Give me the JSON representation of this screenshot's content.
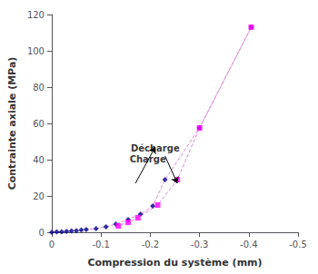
{
  "chart_data": {
    "type": "line",
    "x_label": "Compression du système (mm)",
    "y_label": "Contrainte axiale (MPa)",
    "xlim": [
      0,
      -0.5
    ],
    "ylim": [
      0,
      120
    ],
    "xticks": [
      0,
      -0.1,
      -0.2,
      -0.3,
      -0.4,
      -0.5
    ],
    "yticks": [
      0,
      20,
      40,
      60,
      80,
      100,
      120
    ],
    "grid": false,
    "series": [
      {
        "type": "line",
        "color": "#DD88DD",
        "line_style": "dashed",
        "marker": "none",
        "x": [
          0,
          -0.01,
          -0.02,
          -0.03,
          -0.04,
          -0.05,
          -0.06,
          -0.07,
          -0.09,
          -0.11,
          -0.13,
          -0.155,
          -0.18,
          -0.205,
          -0.23,
          -0.3,
          -0.405
        ],
        "values": [
          0,
          0.2,
          0.3,
          0.5,
          0.7,
          0.9,
          1.2,
          1.5,
          2.0,
          3.0,
          4.5,
          7.0,
          10.0,
          14.5,
          29.0,
          57.5,
          113.0
        ]
      },
      {
        "type": "line",
        "color": "#DD88DD",
        "line_style": "dashed",
        "marker": "none",
        "x": [
          -0.405,
          -0.3,
          -0.255,
          -0.215,
          -0.175,
          -0.155,
          -0.135
        ],
        "values": [
          113.0,
          57.5,
          29.0,
          15.0,
          8.0,
          5.5,
          3.5
        ]
      },
      {
        "type": "scatter",
        "color": "#00008B",
        "marker": "diamond",
        "x": [
          0,
          -0.01,
          -0.02,
          -0.03,
          -0.04,
          -0.05,
          -0.06,
          -0.07,
          -0.09,
          -0.11,
          -0.13,
          -0.155,
          -0.18,
          -0.205,
          -0.23,
          -0.3,
          -0.405
        ],
        "values": [
          0,
          0.2,
          0.3,
          0.5,
          0.7,
          0.9,
          1.2,
          1.5,
          2.0,
          3.0,
          4.5,
          7.0,
          10.0,
          14.5,
          29.0,
          57.5,
          113.0
        ]
      },
      {
        "type": "scatter",
        "color": "#FF00FF",
        "marker": "square",
        "x": [
          -0.405,
          -0.3,
          -0.255,
          -0.215,
          -0.175,
          -0.155,
          -0.135
        ],
        "values": [
          113.0,
          57.5,
          29.0,
          15.0,
          8.0,
          5.5,
          3.5
        ]
      }
    ],
    "annotations": [
      {
        "text": "Charge",
        "x": -0.195,
        "y": 38
      },
      {
        "text": "Décharge",
        "x": -0.21,
        "y": 44
      }
    ],
    "arrows": [
      {
        "from": [
          -0.17,
          27
        ],
        "to": [
          -0.21,
          47
        ]
      },
      {
        "from": [
          -0.23,
          42
        ],
        "to": [
          -0.255,
          27
        ]
      }
    ]
  }
}
